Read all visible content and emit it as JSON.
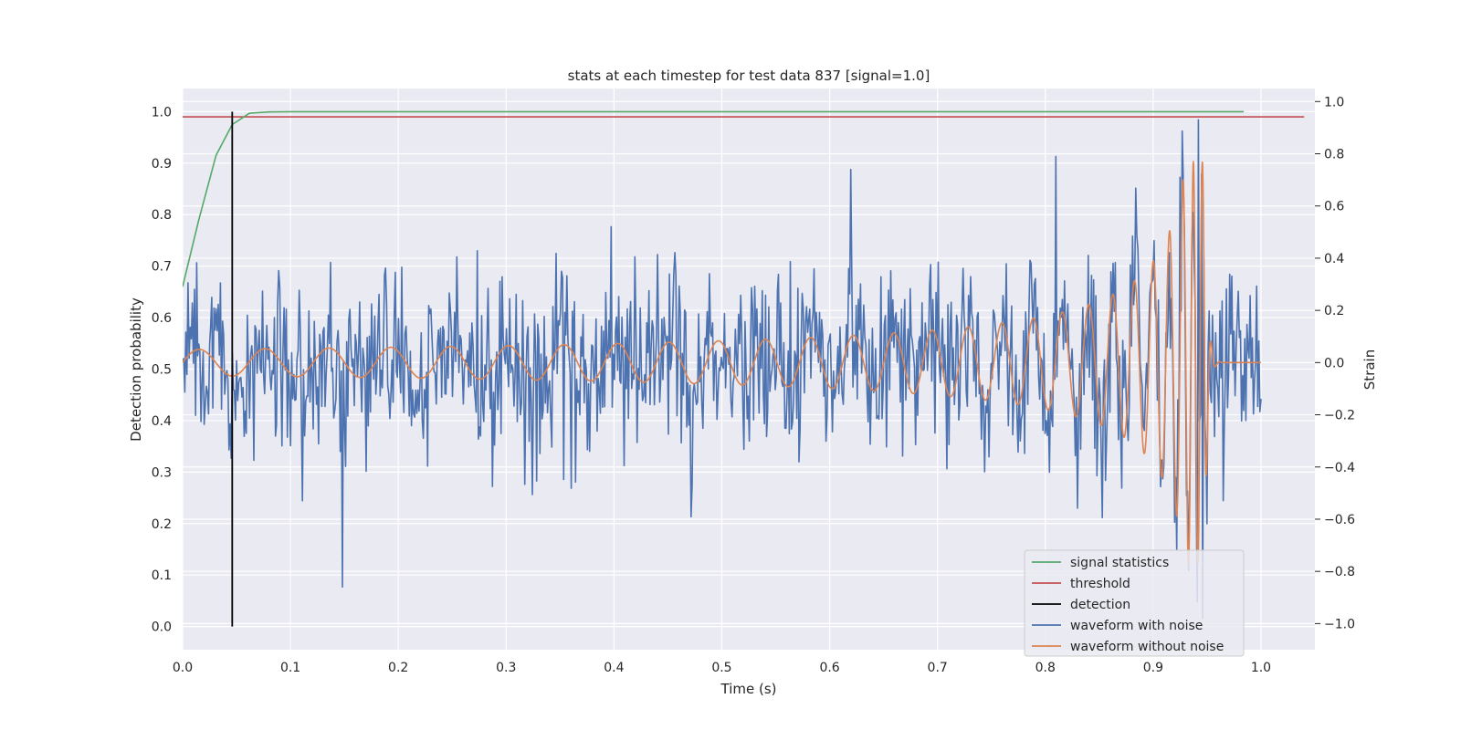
{
  "chart_data": {
    "type": "line",
    "title": "stats at each timestep for test data 837 [signal=1.0]",
    "xlabel": "Time (s)",
    "ylabel": "Detection probability",
    "ylabel_right": "Strain",
    "xlim": [
      0.0,
      1.05
    ],
    "ylim": [
      -0.045,
      1.045
    ],
    "ylim_right": [
      -1.1,
      1.05
    ],
    "xticks": [
      0.0,
      0.1,
      0.2,
      0.3,
      0.4,
      0.5,
      0.6,
      0.7,
      0.8,
      0.9,
      1.0
    ],
    "yticks": [
      0.0,
      0.1,
      0.2,
      0.3,
      0.4,
      0.5,
      0.6,
      0.7,
      0.8,
      0.9,
      1.0
    ],
    "yticks_right": [
      -1.0,
      -0.8,
      -0.6,
      -0.4,
      -0.2,
      0.0,
      0.2,
      0.4,
      0.6,
      0.8,
      1.0
    ],
    "grid": true,
    "legend_position": "bottom-right",
    "threshold": 0.99,
    "threshold_x": [
      0.0,
      1.04
    ],
    "detection_x": 0.046,
    "detection_y": [
      0.0,
      1.0
    ],
    "signal_statistics": {
      "x": [
        0.0,
        0.015,
        0.031,
        0.046,
        0.062,
        0.08,
        0.1,
        0.2,
        0.4,
        0.6,
        0.8,
        0.984
      ],
      "y": [
        0.66,
        0.79,
        0.915,
        0.975,
        0.997,
        0.9995,
        1.0,
        1.0,
        1.0,
        1.0,
        1.0,
        1.0
      ]
    },
    "noisy_waveform": {
      "x_start": 0.0,
      "x_end": 1.0,
      "points": 1000,
      "noise_std": 0.17,
      "spike_x": [
        0.148,
        0.62,
        0.81,
        0.925,
        0.942,
        0.946
      ],
      "spike_y": [
        -0.86,
        0.74,
        0.79,
        0.71,
        0.93,
        -0.98
      ]
    },
    "clean_waveform": {
      "x_start": 0.0,
      "x_end": 1.0,
      "merger_x": 0.948,
      "amp_start": 0.05,
      "amp_peak": 0.77,
      "freq_start_hz": 16,
      "freq_peak_hz": 120
    },
    "series": [
      {
        "name": "signal statistics",
        "color": "#55a868",
        "axis": "left"
      },
      {
        "name": "threshold",
        "color": "#c44e52",
        "axis": "left"
      },
      {
        "name": "detection",
        "color": "#000000",
        "axis": "left"
      },
      {
        "name": "waveform with noise",
        "color": "#4c72b0",
        "axis": "right"
      },
      {
        "name": "waveform without noise",
        "color": "#dd8452",
        "axis": "right"
      }
    ]
  },
  "colors": {
    "plot_background": "#eaeaf2",
    "grid": "#ffffff",
    "text": "#262626"
  }
}
